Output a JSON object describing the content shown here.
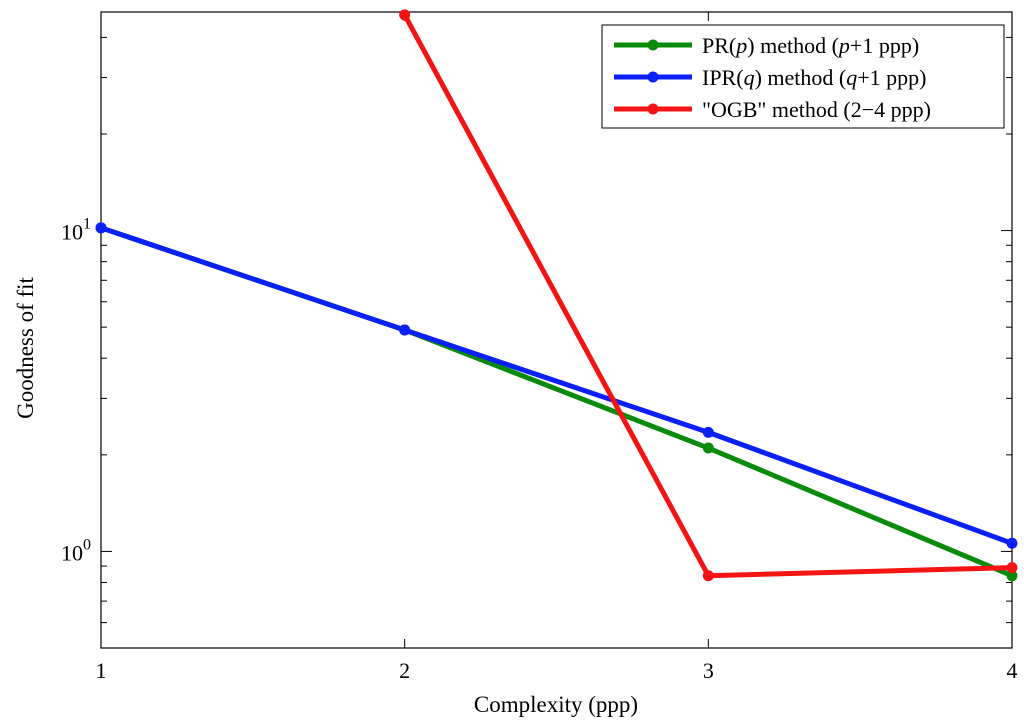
{
  "chart_data": {
    "type": "line",
    "title": "",
    "xlabel": "Complexity (ppp)",
    "ylabel": "Goodness of fit",
    "yscale": "log",
    "xlim": [
      1,
      4
    ],
    "ylim": [
      0.5,
      48
    ],
    "xticks": [
      "1",
      "2",
      "3",
      "4"
    ],
    "yticks": [
      {
        "value": 1,
        "base": "10",
        "exp": "0"
      },
      {
        "value": 10,
        "base": "10",
        "exp": "1"
      }
    ],
    "legend_position": "top-right",
    "series": [
      {
        "name": "PR(p) method (p+1 ppp)",
        "legend": [
          {
            "t": "PR(",
            "i": false
          },
          {
            "t": "p",
            "i": true
          },
          {
            "t": ") method (",
            "i": false
          },
          {
            "t": "p",
            "i": true
          },
          {
            "t": "+1 ppp)",
            "i": false
          }
        ],
        "color": "#0a8a0a",
        "x": [
          1,
          2,
          3,
          4
        ],
        "y": [
          10.2,
          4.9,
          2.1,
          0.84
        ]
      },
      {
        "name": "IPR(q) method (q+1 ppp)",
        "legend": [
          {
            "t": "IPR(",
            "i": false
          },
          {
            "t": "q",
            "i": true
          },
          {
            "t": ") method (",
            "i": false
          },
          {
            "t": "q",
            "i": true
          },
          {
            "t": "+1 ppp)",
            "i": false
          }
        ],
        "color": "#0b1ff7",
        "x": [
          1,
          2,
          3,
          4
        ],
        "y": [
          10.2,
          4.9,
          2.35,
          1.06
        ]
      },
      {
        "name": "\"OGB\" method (2−4 ppp)",
        "legend": [
          {
            "t": "\"OGB\" method (2−4 ppp)",
            "i": false
          }
        ],
        "color": "#f51414",
        "x": [
          2,
          3,
          4
        ],
        "y": [
          47,
          0.84,
          0.89
        ]
      }
    ]
  }
}
